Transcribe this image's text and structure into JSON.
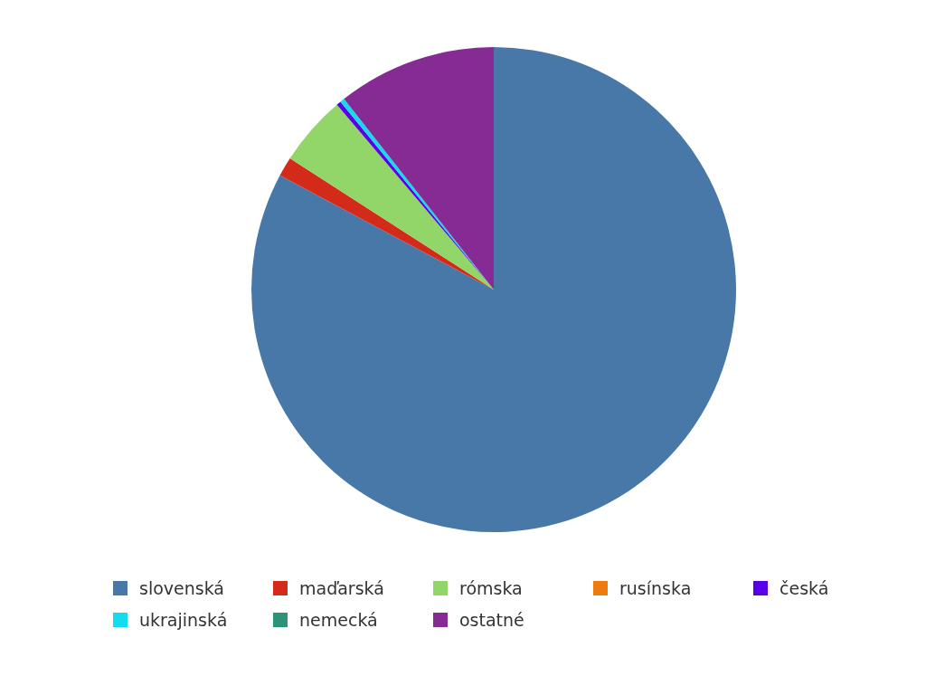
{
  "chart_data": {
    "type": "pie",
    "categories": [
      "slovenská",
      "maďarská",
      "rómska",
      "rusínska",
      "česká",
      "ukrajinská",
      "nemecká",
      "ostatné"
    ],
    "values": [
      82.8,
      1.3,
      4.7,
      0,
      0.3,
      0.3,
      0,
      10.6
    ],
    "colors": [
      "#4878a8",
      "#d42a1a",
      "#92d568",
      "#ef7b10",
      "#5a00e8",
      "#12dced",
      "#2a937a",
      "#862a94"
    ],
    "legend": "bottom"
  }
}
